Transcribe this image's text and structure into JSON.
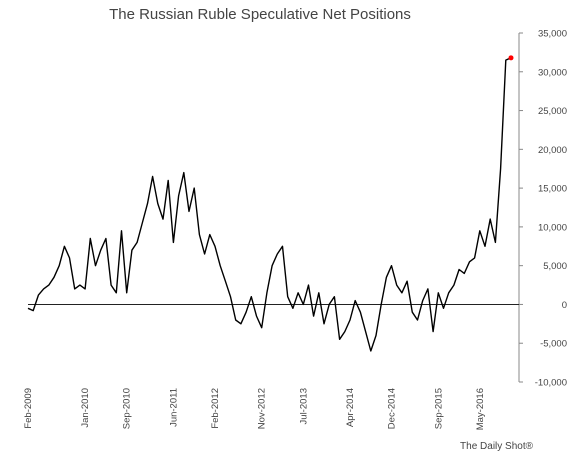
{
  "chart_data": {
    "type": "line",
    "title": "The Russian Ruble Speculative Net Positions",
    "ylim": [
      -10000,
      35000
    ],
    "yticks": [
      -10000,
      -5000,
      0,
      5000,
      10000,
      15000,
      20000,
      25000,
      30000,
      35000
    ],
    "ytick_labels": [
      "-10,000",
      "-5,000",
      "0",
      "5,000",
      "10,000",
      "15,000",
      "20,000",
      "25,000",
      "30,000",
      "35,000"
    ],
    "xtick_labels": [
      "Feb-2009",
      "Jan-2010",
      "Sep-2010",
      "Jun-2011",
      "Feb-2012",
      "Nov-2012",
      "Jul-2013",
      "Apr-2014",
      "Dec-2014",
      "Sep-2015",
      "May-2016"
    ],
    "x": [
      "2009-02",
      "2009-03",
      "2009-04",
      "2009-05",
      "2009-06",
      "2009-07",
      "2009-08",
      "2009-09",
      "2009-10",
      "2009-11",
      "2009-12",
      "2010-01",
      "2010-02",
      "2010-03",
      "2010-04",
      "2010-05",
      "2010-06",
      "2010-07",
      "2010-08",
      "2010-09",
      "2010-10",
      "2010-11",
      "2010-12",
      "2011-01",
      "2011-02",
      "2011-03",
      "2011-04",
      "2011-05",
      "2011-06",
      "2011-07",
      "2011-08",
      "2011-09",
      "2011-10",
      "2011-11",
      "2011-12",
      "2012-01",
      "2012-02",
      "2012-03",
      "2012-04",
      "2012-05",
      "2012-06",
      "2012-07",
      "2012-08",
      "2012-09",
      "2012-10",
      "2012-11",
      "2012-12",
      "2013-01",
      "2013-02",
      "2013-03",
      "2013-04",
      "2013-05",
      "2013-06",
      "2013-07",
      "2013-08",
      "2013-09",
      "2013-10",
      "2013-11",
      "2013-12",
      "2014-01",
      "2014-02",
      "2014-03",
      "2014-04",
      "2014-05",
      "2014-06",
      "2014-07",
      "2014-08",
      "2014-09",
      "2014-10",
      "2014-11",
      "2014-12",
      "2015-01",
      "2015-02",
      "2015-03",
      "2015-04",
      "2015-05",
      "2015-06",
      "2015-07",
      "2015-08",
      "2015-09",
      "2015-10",
      "2015-11",
      "2015-12",
      "2016-01",
      "2016-02",
      "2016-03",
      "2016-04",
      "2016-05",
      "2016-06",
      "2016-07",
      "2016-08",
      "2016-09",
      "2016-10",
      "2016-11"
    ],
    "y": [
      -500,
      -800,
      1200,
      2000,
      2500,
      3500,
      5000,
      7500,
      6000,
      2000,
      2500,
      2000,
      8500,
      5000,
      7000,
      8500,
      2500,
      1500,
      9500,
      1500,
      7000,
      8000,
      10500,
      13000,
      16500,
      13000,
      11000,
      16000,
      8000,
      14000,
      17000,
      12000,
      15000,
      9000,
      6500,
      9000,
      7500,
      5000,
      3000,
      1000,
      -2000,
      -2500,
      -1000,
      1000,
      -1500,
      -3000,
      1500,
      5000,
      6500,
      7500,
      1000,
      -500,
      1500,
      0,
      2500,
      -1500,
      1500,
      -2500,
      0,
      1000,
      -4500,
      -3500,
      -2000,
      500,
      -1000,
      -3500,
      -6000,
      -4000,
      0,
      3500,
      5000,
      2500,
      1500,
      3000,
      -1000,
      -2000,
      500,
      2000,
      -3500,
      1500,
      -500,
      1500,
      2500,
      4500,
      4000,
      5500,
      6000,
      9500,
      7500,
      11000,
      8000,
      17500,
      31500,
      31800
    ],
    "highlight_point": {
      "x": "2016-11",
      "y": 31800,
      "color": "#ff0000"
    },
    "line_color": "#000000",
    "grid": false
  },
  "footer": {
    "credit": "The Daily Shot®"
  }
}
